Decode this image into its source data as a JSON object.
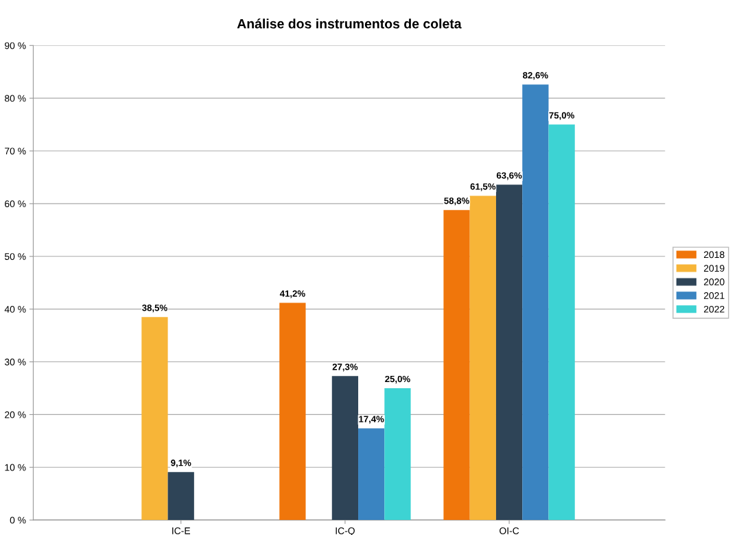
{
  "chart_data": {
    "type": "bar",
    "title": "Análise dos instrumentos de coleta",
    "categories": [
      "IC-E",
      "IC-Q",
      "OI-C"
    ],
    "series": [
      {
        "name": "2018",
        "color": "#f0760b",
        "values": [
          null,
          41.2,
          58.8
        ],
        "value_labels": [
          null,
          "41,2%",
          "58,8%"
        ]
      },
      {
        "name": "2019",
        "color": "#f7b538",
        "values": [
          38.5,
          null,
          61.5
        ],
        "value_labels": [
          "38,5%",
          null,
          "61,5%"
        ]
      },
      {
        "name": "2020",
        "color": "#2e4457",
        "values": [
          9.1,
          27.3,
          63.6
        ],
        "value_labels": [
          "9,1%",
          "27,3%",
          "63,6%"
        ]
      },
      {
        "name": "2021",
        "color": "#3a84c1",
        "values": [
          null,
          17.4,
          82.6
        ],
        "value_labels": [
          null,
          "17,4%",
          "82,6%"
        ]
      },
      {
        "name": "2022",
        "color": "#3dd3d3",
        "values": [
          null,
          25.0,
          75.0
        ],
        "value_labels": [
          null,
          "25,0%",
          "75,0%"
        ]
      }
    ],
    "ylim": [
      0,
      90
    ],
    "yticks": [
      {
        "value": 0,
        "label": "0 %"
      },
      {
        "value": 10,
        "label": "10 %"
      },
      {
        "value": 20,
        "label": "20 %"
      },
      {
        "value": 30,
        "label": "30 %"
      },
      {
        "value": 40,
        "label": "40 %"
      },
      {
        "value": 50,
        "label": "50 %"
      },
      {
        "value": 60,
        "label": "60 %"
      },
      {
        "value": 70,
        "label": "70 %"
      },
      {
        "value": 80,
        "label": "80 %"
      },
      {
        "value": 90,
        "label": "90 %"
      }
    ],
    "grid": "y",
    "legend": "right"
  }
}
